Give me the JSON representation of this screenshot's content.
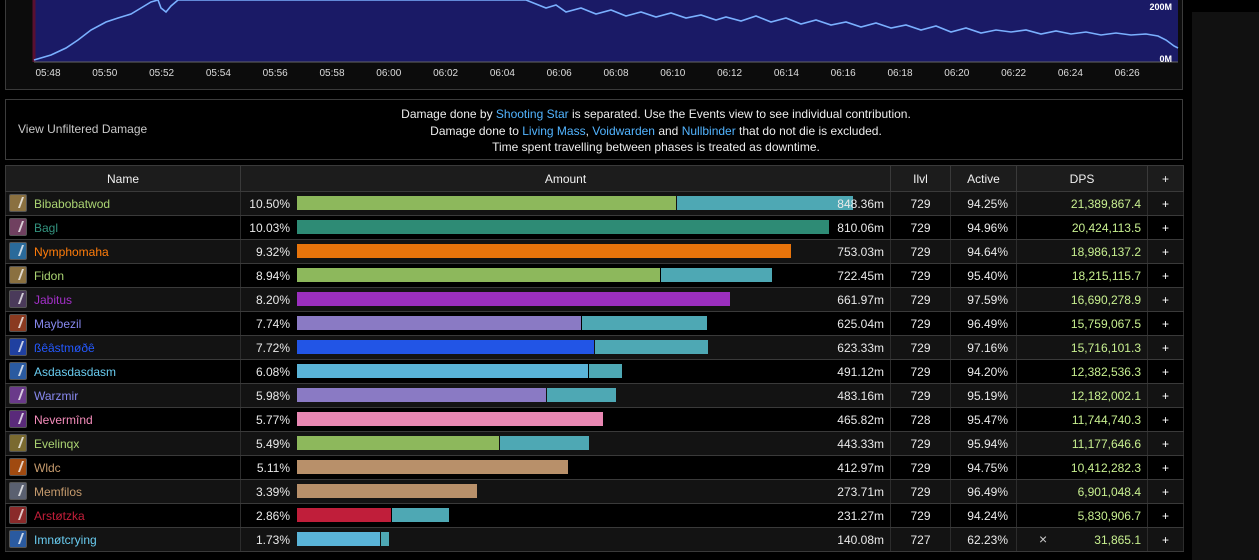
{
  "graph": {
    "time_ticks": [
      "05:48",
      "05:50",
      "05:52",
      "05:54",
      "05:56",
      "05:58",
      "06:00",
      "06:02",
      "06:04",
      "06:06",
      "06:08",
      "06:10",
      "06:12",
      "06:14",
      "06:16",
      "06:18",
      "06:20",
      "06:22",
      "06:24",
      "06:26"
    ],
    "y_labels": [
      "200M",
      "0M"
    ],
    "fill_color": "#1a1a66",
    "line_color": "#7ab0ff"
  },
  "notice": {
    "unfiltered_label": "View Unfiltered Damage",
    "line1": {
      "pre": "Damage done by ",
      "link": "Shooting Star",
      "post": " is separated. Use the Events view to see individual contribution."
    },
    "line2": {
      "pre": "Damage done to ",
      "link1": "Living Mass",
      "sep1": ", ",
      "link2": "Voidwarden",
      "sep2": " and ",
      "link3": "Nullbinder",
      "post": " that do not die is excluded."
    },
    "line3": "Time spent travelling between phases is treated as downtime."
  },
  "table": {
    "headers": {
      "name": "Name",
      "amount": "Amount",
      "ilvl": "Ilvl",
      "active": "Active",
      "dps": "DPS",
      "plus": "+"
    },
    "rows": [
      {
        "name": "Bibabobatwod",
        "color": "#abd473",
        "icon_color": "#8a7040",
        "pct": "10.50%",
        "bars": [
          {
            "frac": 0.69,
            "color": "#8db85c"
          },
          {
            "frac": 0.32,
            "color": "#4ea8b4"
          }
        ],
        "amount": "848.36m",
        "ilvl": "729",
        "active": "94.25%",
        "dps": "21,389,867.4",
        "plus": "+"
      },
      {
        "name": "Bagl",
        "color": "#33937f",
        "icon_color": "#704060",
        "pct": "10.03%",
        "bars": [
          {
            "frac": 0.967,
            "color": "#2e8b75"
          }
        ],
        "amount": "810.06m",
        "ilvl": "729",
        "active": "94.96%",
        "dps": "20,424,113.5",
        "plus": "+"
      },
      {
        "name": "Nymphomaha",
        "color": "#ff7c0a",
        "icon_color": "#2a6a9a",
        "pct": "9.32%",
        "bars": [
          {
            "frac": 0.898,
            "color": "#e8740b"
          }
        ],
        "amount": "753.03m",
        "ilvl": "729",
        "active": "94.64%",
        "dps": "18,986,137.2",
        "plus": "+"
      },
      {
        "name": "Fidon",
        "color": "#abd473",
        "icon_color": "#8a7040",
        "pct": "8.94%",
        "bars": [
          {
            "frac": 0.66,
            "color": "#8db85c"
          },
          {
            "frac": 0.201,
            "color": "#4ea8b4"
          }
        ],
        "amount": "722.45m",
        "ilvl": "729",
        "active": "95.40%",
        "dps": "18,215,115.7",
        "plus": "+"
      },
      {
        "name": "Jabitus",
        "color": "#a330c9",
        "icon_color": "#4a3a5a",
        "pct": "8.20%",
        "bars": [
          {
            "frac": 0.788,
            "color": "#9b2fbf"
          }
        ],
        "amount": "661.97m",
        "ilvl": "729",
        "active": "97.59%",
        "dps": "16,690,278.9",
        "plus": "+"
      },
      {
        "name": "Maybezil",
        "color": "#8788ee",
        "icon_color": "#8a3a20",
        "pct": "7.74%",
        "bars": [
          {
            "frac": 0.517,
            "color": "#8a7ac4"
          },
          {
            "frac": 0.228,
            "color": "#4ea8b4"
          }
        ],
        "amount": "625.04m",
        "ilvl": "729",
        "active": "96.49%",
        "dps": "15,759,067.5",
        "plus": "+"
      },
      {
        "name": "ßêâstmøðê",
        "color": "#2459ff",
        "icon_color": "#2040a0",
        "pct": "7.72%",
        "bars": [
          {
            "frac": 0.54,
            "color": "#2255e6"
          },
          {
            "frac": 0.206,
            "color": "#4ea8b4"
          }
        ],
        "amount": "623.33m",
        "ilvl": "729",
        "active": "97.16%",
        "dps": "15,716,101.3",
        "plus": "+"
      },
      {
        "name": "Asdasdasdasm",
        "color": "#69ccf0",
        "icon_color": "#2a5aa0",
        "pct": "6.08%",
        "bars": [
          {
            "frac": 0.529,
            "color": "#5ab4d8"
          },
          {
            "frac": 0.06,
            "color": "#4ea8b4"
          }
        ],
        "amount": "491.12m",
        "ilvl": "729",
        "active": "94.20%",
        "dps": "12,382,536.3",
        "plus": "+"
      },
      {
        "name": "Warzmir",
        "color": "#8788ee",
        "icon_color": "#6a3a8a",
        "pct": "5.98%",
        "bars": [
          {
            "frac": 0.452,
            "color": "#8a7ac4"
          },
          {
            "frac": 0.126,
            "color": "#4ea8b4"
          }
        ],
        "amount": "483.16m",
        "ilvl": "729",
        "active": "95.19%",
        "dps": "12,182,002.1",
        "plus": "+"
      },
      {
        "name": "Nevermînd",
        "color": "#f48cba",
        "icon_color": "#5a2a7a",
        "pct": "5.77%",
        "bars": [
          {
            "frac": 0.557,
            "color": "#e887b2"
          }
        ],
        "amount": "465.82m",
        "ilvl": "728",
        "active": "95.47%",
        "dps": "11,744,740.3",
        "plus": "+"
      },
      {
        "name": "Evelinqx",
        "color": "#abd473",
        "icon_color": "#7a6a30",
        "pct": "5.49%",
        "bars": [
          {
            "frac": 0.367,
            "color": "#8db85c"
          },
          {
            "frac": 0.161,
            "color": "#4ea8b4"
          }
        ],
        "amount": "443.33m",
        "ilvl": "729",
        "active": "95.94%",
        "dps": "11,177,646.6",
        "plus": "+"
      },
      {
        "name": "Wldc",
        "color": "#c69b6d",
        "icon_color": "#a04a10",
        "pct": "5.11%",
        "bars": [
          {
            "frac": 0.492,
            "color": "#b8906a"
          }
        ],
        "amount": "412.97m",
        "ilvl": "729",
        "active": "94.75%",
        "dps": "10,412,282.3",
        "plus": "+"
      },
      {
        "name": "Memfilos",
        "color": "#c69b6d",
        "icon_color": "#5a6070",
        "pct": "3.39%",
        "bars": [
          {
            "frac": 0.328,
            "color": "#b8906a"
          }
        ],
        "amount": "273.71m",
        "ilvl": "729",
        "active": "96.49%",
        "dps": "6,901,048.4",
        "plus": "+"
      },
      {
        "name": "Arstøtzka",
        "color": "#c41e3a",
        "icon_color": "#8a2a2a",
        "pct": "2.86%",
        "bars": [
          {
            "frac": 0.171,
            "color": "#c01e3a"
          },
          {
            "frac": 0.104,
            "color": "#4ea8b4"
          }
        ],
        "amount": "231.27m",
        "ilvl": "729",
        "active": "94.24%",
        "dps": "5,830,906.7",
        "plus": "+"
      },
      {
        "name": "Imnøtcrying",
        "color": "#69ccf0",
        "icon_color": "#2a5aa0",
        "pct": "1.73%",
        "bars": [
          {
            "frac": 0.151,
            "color": "#5ab4d8"
          },
          {
            "frac": 0.015,
            "color": "#4ea8b4"
          }
        ],
        "amount": "140.08m",
        "ilvl": "727",
        "active": "62.23%",
        "dps": "31,865.1",
        "dps_marker": "×",
        "plus": "+"
      }
    ]
  }
}
